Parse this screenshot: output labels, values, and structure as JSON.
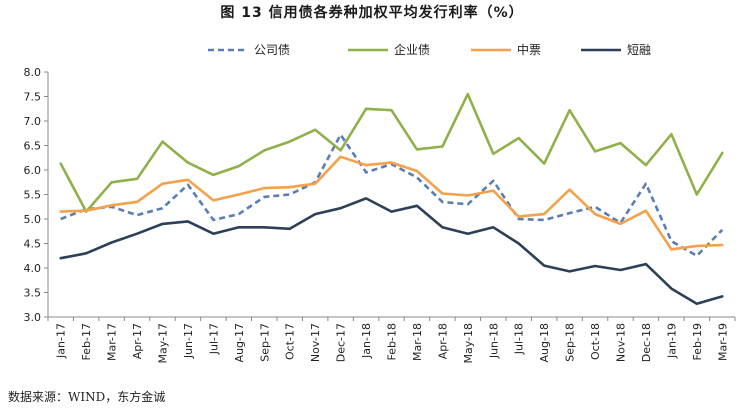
{
  "chart_data": {
    "type": "line",
    "title": "图 13   信用债各券种加权平均发行利率（%）",
    "source": "数据来源：WIND，东方金诚",
    "xlabel": "",
    "ylabel": "",
    "ylim": [
      3.0,
      8.0
    ],
    "yticks": [
      "3.0",
      "3.5",
      "4.0",
      "4.5",
      "5.0",
      "5.5",
      "6.0",
      "6.5",
      "7.0",
      "7.5",
      "8.0"
    ],
    "grid": false,
    "legend_position": "top",
    "categories": [
      "Jan-17",
      "Feb-17",
      "Mar-17",
      "Apr-17",
      "May-17",
      "Jun-17",
      "Jul-17",
      "Aug-17",
      "Sep-17",
      "Oct-17",
      "Nov-17",
      "Dec-17",
      "Jan-18",
      "Feb-18",
      "Mar-18",
      "Apr-18",
      "May-18",
      "Jun-18",
      "Jul-18",
      "Aug-18",
      "Sep-18",
      "Oct-18",
      "Nov-18",
      "Dec-18",
      "Jan-19",
      "Feb-19",
      "Mar-19"
    ],
    "series": [
      {
        "name": "公司债",
        "color": "#5a7db5",
        "dashed": true,
        "values": [
          5.0,
          5.2,
          5.25,
          5.08,
          5.22,
          5.7,
          4.98,
          5.1,
          5.45,
          5.5,
          5.75,
          6.72,
          5.95,
          6.12,
          5.85,
          5.35,
          5.3,
          5.78,
          5.0,
          4.98,
          5.12,
          5.25,
          4.92,
          5.72,
          4.55,
          4.25,
          4.78
        ]
      },
      {
        "name": "企业债",
        "color": "#8fb04a",
        "dashed": false,
        "values": [
          6.13,
          5.15,
          5.75,
          5.82,
          6.58,
          6.15,
          5.9,
          6.08,
          6.4,
          6.58,
          6.82,
          6.4,
          7.25,
          7.22,
          6.42,
          6.48,
          7.55,
          6.33,
          6.65,
          6.13,
          7.22,
          6.38,
          6.55,
          6.1,
          6.73,
          5.5,
          6.35
        ]
      },
      {
        "name": "中票",
        "color": "#f5a04a",
        "dashed": false,
        "values": [
          5.15,
          5.17,
          5.28,
          5.35,
          5.72,
          5.8,
          5.38,
          5.5,
          5.63,
          5.65,
          5.72,
          6.27,
          6.1,
          6.15,
          5.98,
          5.52,
          5.48,
          5.58,
          5.05,
          5.1,
          5.6,
          5.1,
          4.9,
          5.17,
          4.38,
          4.45,
          4.47
        ]
      },
      {
        "name": "短融",
        "color": "#2e4057",
        "dashed": false,
        "values": [
          4.2,
          4.3,
          4.52,
          4.7,
          4.9,
          4.95,
          4.7,
          4.83,
          4.83,
          4.8,
          5.1,
          5.22,
          5.42,
          5.15,
          5.27,
          4.83,
          4.7,
          4.83,
          4.5,
          4.05,
          3.93,
          4.04,
          3.96,
          4.08,
          3.58,
          3.27,
          3.42
        ]
      }
    ]
  }
}
